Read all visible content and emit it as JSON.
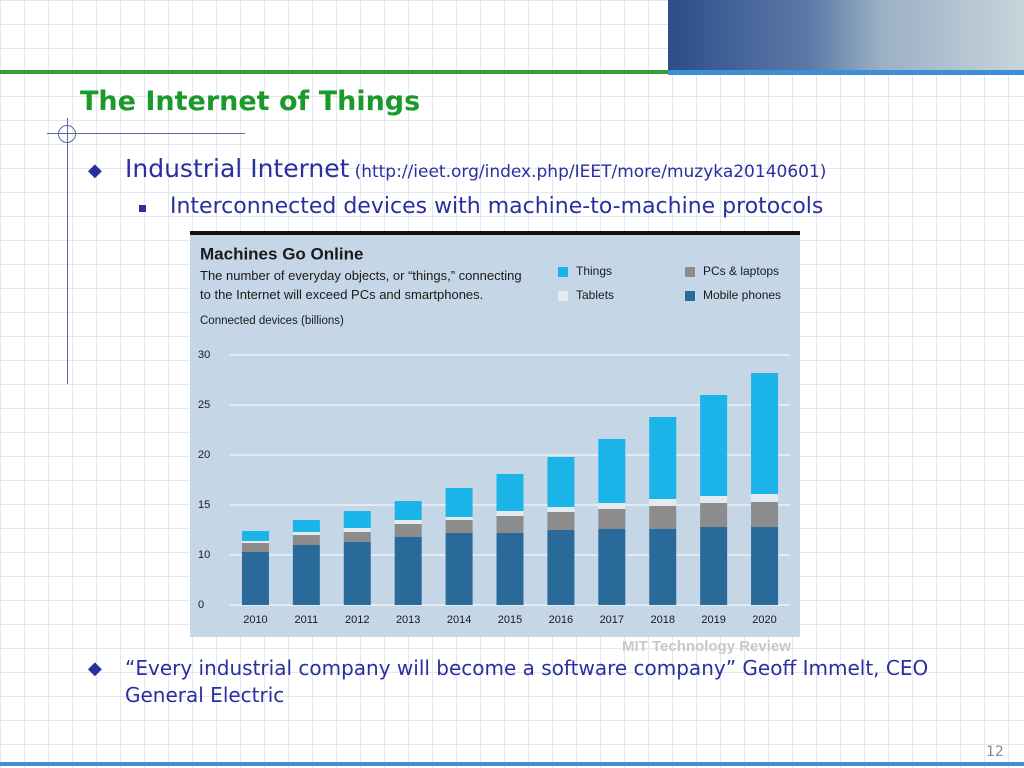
{
  "slide": {
    "title": "The Internet of Things",
    "bullet1": "Industrial Internet",
    "bullet1_link": "(http://ieet.org/index.php/IEET/more/muzyka20140601)",
    "sub_bullet": "Interconnected devices with machine-to-machine protocols",
    "bullet2": "“Every industrial company will become a software company” Geoff Immelt, CEO General Electric",
    "source": "MIT Technology Review",
    "page_number": "12"
  },
  "chart_data": {
    "type": "bar",
    "stacked": true,
    "title": "Machines Go Online",
    "subtitle": "The number of everyday objects, or “things,” connecting to the Internet will exceed PCs and smartphones.",
    "y_label": "Connected devices (billions)",
    "categories": [
      "2010",
      "2011",
      "2012",
      "2013",
      "2014",
      "2015",
      "2016",
      "2017",
      "2018",
      "2019",
      "2020"
    ],
    "series": [
      {
        "name": "Mobile phones",
        "color": "#2a6a9a",
        "values": [
          10.3,
          11.0,
          11.3,
          11.8,
          12.2,
          12.2,
          12.5,
          12.6,
          12.6,
          12.8,
          12.8
        ]
      },
      {
        "name": "PCs & laptops",
        "color": "#8c8c8c",
        "values": [
          0.9,
          1.0,
          1.0,
          1.3,
          1.3,
          1.7,
          1.8,
          2.0,
          2.3,
          2.4,
          2.5
        ]
      },
      {
        "name": "Tablets",
        "color": "#e3eaf0",
        "values": [
          0.2,
          0.3,
          0.4,
          0.4,
          0.3,
          0.5,
          0.5,
          0.6,
          0.7,
          0.7,
          0.8
        ]
      },
      {
        "name": "Things",
        "color": "#1ab4e8",
        "values": [
          1.0,
          1.2,
          1.7,
          1.9,
          2.9,
          3.7,
          5.0,
          6.4,
          8.2,
          10.1,
          12.1
        ]
      }
    ],
    "ylim": [
      0,
      30
    ],
    "yticks": [
      0,
      10,
      15,
      20,
      25,
      30
    ],
    "grid": true
  }
}
